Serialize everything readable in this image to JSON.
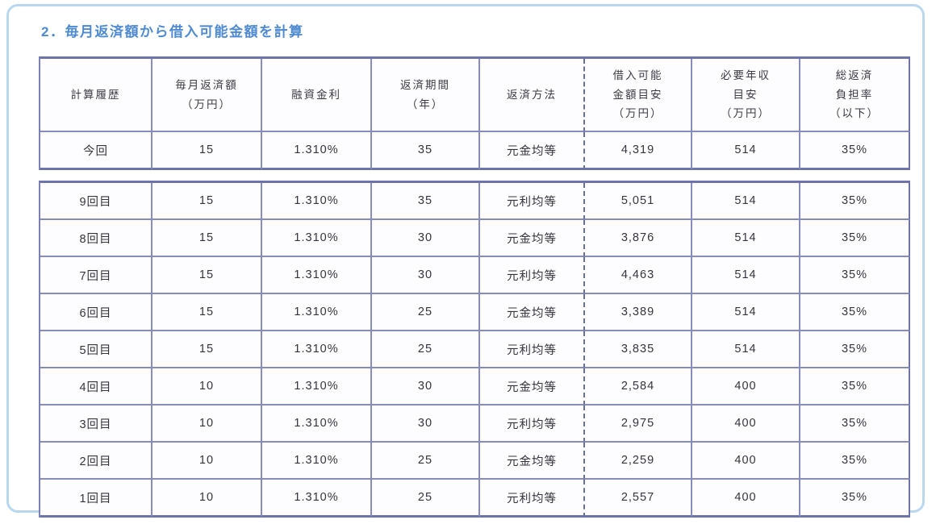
{
  "page": {
    "title": "2．毎月返済額から借入可能金額を計算"
  },
  "colors": {
    "title_blue": "#4e8ad2",
    "table_border_inner": "#868cc0",
    "table_border_outer": "#6e74ab",
    "dashed_divider": "#696e9b",
    "panel_border": "#b9d7ef",
    "cell_text": "#34343e"
  },
  "table": {
    "headers": [
      {
        "lines": [
          "計算履歴"
        ]
      },
      {
        "lines": [
          "毎月返済額",
          "（万円）"
        ]
      },
      {
        "lines": [
          "融資金利"
        ]
      },
      {
        "lines": [
          "返済期間",
          "（年）"
        ]
      },
      {
        "lines": [
          "返済方法"
        ]
      },
      {
        "lines": [
          "借入可能",
          "金額目安",
          "（万円）"
        ]
      },
      {
        "lines": [
          "必要年収",
          "目安",
          "（万円）"
        ]
      },
      {
        "lines": [
          "総返済",
          "負担率",
          "（以下）"
        ]
      }
    ],
    "current_rows": [
      {
        "cells": [
          "今回",
          "15",
          "1.310%",
          "35",
          "元金均等",
          "4,319",
          "514",
          "35%"
        ]
      }
    ],
    "history_rows": [
      {
        "cells": [
          "9回目",
          "15",
          "1.310%",
          "35",
          "元利均等",
          "5,051",
          "514",
          "35%"
        ]
      },
      {
        "cells": [
          "8回目",
          "15",
          "1.310%",
          "30",
          "元金均等",
          "3,876",
          "514",
          "35%"
        ]
      },
      {
        "cells": [
          "7回目",
          "15",
          "1.310%",
          "30",
          "元利均等",
          "4,463",
          "514",
          "35%"
        ]
      },
      {
        "cells": [
          "6回目",
          "15",
          "1.310%",
          "25",
          "元金均等",
          "3,389",
          "514",
          "35%"
        ]
      },
      {
        "cells": [
          "5回目",
          "15",
          "1.310%",
          "25",
          "元利均等",
          "3,835",
          "514",
          "35%"
        ]
      },
      {
        "cells": [
          "4回目",
          "10",
          "1.310%",
          "30",
          "元金均等",
          "2,584",
          "400",
          "35%"
        ]
      },
      {
        "cells": [
          "3回目",
          "10",
          "1.310%",
          "30",
          "元利均等",
          "2,975",
          "400",
          "35%"
        ]
      },
      {
        "cells": [
          "2回目",
          "10",
          "1.310%",
          "25",
          "元金均等",
          "2,259",
          "400",
          "35%"
        ]
      },
      {
        "cells": [
          "1回目",
          "10",
          "1.310%",
          "25",
          "元利均等",
          "2,557",
          "400",
          "35%"
        ]
      }
    ]
  }
}
